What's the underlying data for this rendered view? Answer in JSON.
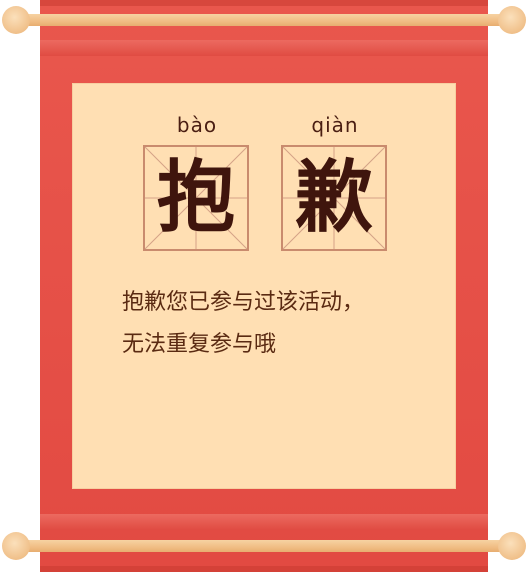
{
  "heading": {
    "chars": [
      {
        "pinyin": "bào",
        "hanzi": "抱"
      },
      {
        "pinyin": "qiàn",
        "hanzi": "歉"
      }
    ]
  },
  "message": {
    "line1": "抱歉您已参与过该活动，",
    "line2": "无法重复参与哦"
  },
  "colors": {
    "scroll_red": "#e24a42",
    "paper": "#ffdfb3",
    "rod": "#f0bd84",
    "text_dark": "#3f150d",
    "text_message": "#5a2a12"
  }
}
